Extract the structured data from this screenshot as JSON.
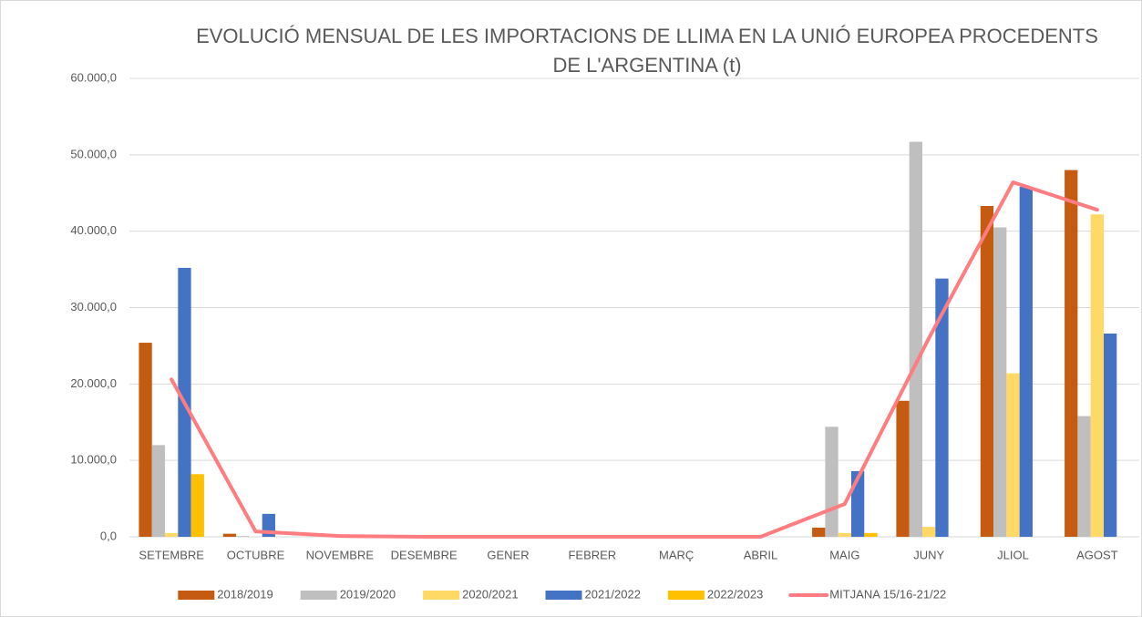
{
  "chart_data": {
    "type": "bar",
    "title": "EVOLUCIÓ MENSUAL DE LES IMPORTACIONS DE LLIMA EN LA UNIÓ EUROPEA PROCEDENTS DE L'ARGENTINA (t)",
    "categories": [
      "SETEMBRE",
      "OCTUBRE",
      "NOVEMBRE",
      "DESEMBRE",
      "GENER",
      "FEBRER",
      "MARÇ",
      "ABRIL",
      "MAIG",
      "JUNY",
      "JLIOL",
      "AGOST"
    ],
    "series": [
      {
        "name": "2018/2019",
        "color": "#c55a11",
        "values": [
          25400,
          400,
          0,
          0,
          0,
          0,
          0,
          0,
          1200,
          17800,
          43300,
          48000
        ]
      },
      {
        "name": "2019/2020",
        "color": "#bfbfbf",
        "values": [
          12000,
          100,
          0,
          0,
          0,
          0,
          0,
          0,
          14400,
          51700,
          40500,
          15800
        ]
      },
      {
        "name": "2020/2021",
        "color": "#ffd966",
        "values": [
          500,
          0,
          0,
          0,
          0,
          0,
          0,
          0,
          500,
          1300,
          21400,
          42200
        ]
      },
      {
        "name": "2021/2022",
        "color": "#4472c4",
        "values": [
          35200,
          3000,
          0,
          0,
          0,
          0,
          0,
          0,
          8600,
          33800,
          45800,
          26600
        ]
      },
      {
        "name": "2022/2023",
        "color": "#ffc000",
        "values": [
          8200,
          0,
          0,
          0,
          0,
          0,
          0,
          0,
          500,
          0,
          0,
          0
        ]
      },
      {
        "name": "MITJANA 15/16-21/22",
        "color": "#ff7c80",
        "type": "line",
        "values": [
          20600,
          700,
          100,
          0,
          0,
          0,
          0,
          0,
          4300,
          26000,
          46400,
          42800
        ]
      }
    ],
    "ylim": [
      0,
      60000
    ],
    "yticks": [
      {
        "value": 0,
        "label": "0,0"
      },
      {
        "value": 10000,
        "label": "10.000,0"
      },
      {
        "value": 20000,
        "label": "20.000,0"
      },
      {
        "value": 30000,
        "label": "30.000,0"
      },
      {
        "value": 40000,
        "label": "40.000,0"
      },
      {
        "value": 50000,
        "label": "50.000,0"
      },
      {
        "value": 60000,
        "label": "60.000,0"
      }
    ],
    "grid": true,
    "legend": "bottom"
  }
}
